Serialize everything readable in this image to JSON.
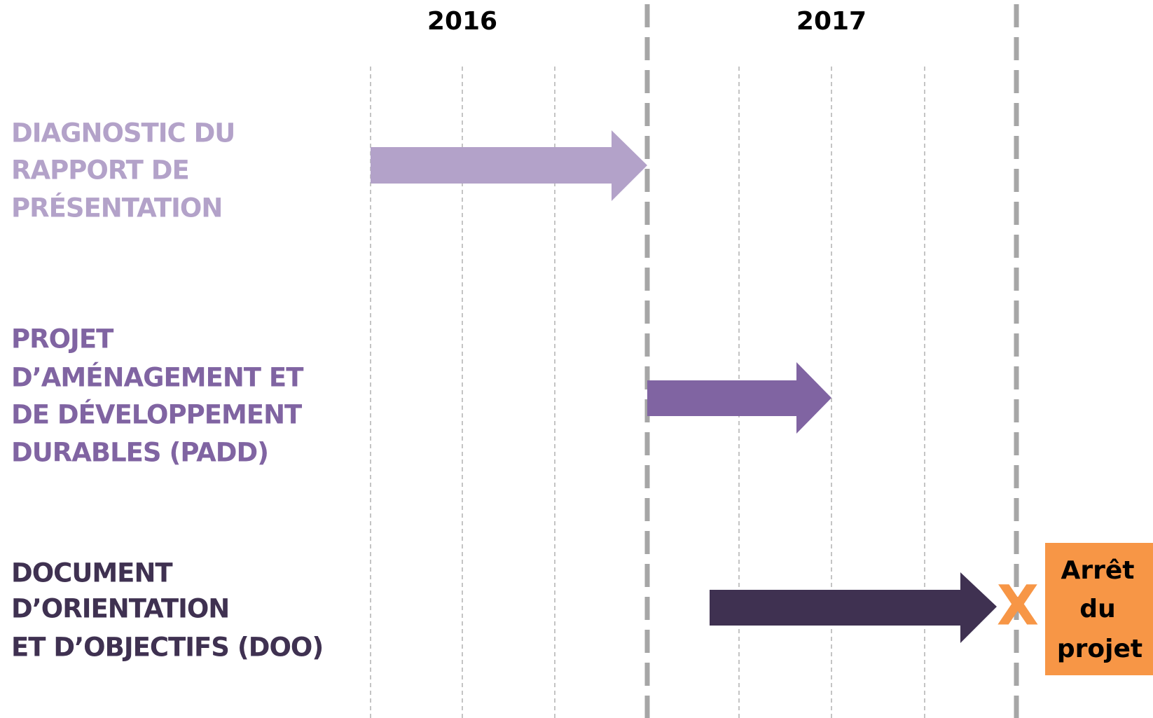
{
  "header": {
    "years": [
      "2016",
      "2017"
    ]
  },
  "rows": [
    {
      "label": [
        "DIAGNOSTIC DU",
        "RAPPORT DE",
        "PRÉSENTATION"
      ]
    },
    {
      "label": [
        "PROJET",
        "D’AMÉNAGEMENT ET",
        "DE DÉVELOPPEMENT",
        "DURABLES (PADD)"
      ]
    },
    {
      "label": [
        "DOCUMENT",
        "D’ORIENTATION",
        "ET D’OBJECTIFS (DOO)"
      ]
    }
  ],
  "milestone": {
    "mark": "X",
    "label": [
      "Arrêt",
      "du",
      "projet"
    ]
  }
}
